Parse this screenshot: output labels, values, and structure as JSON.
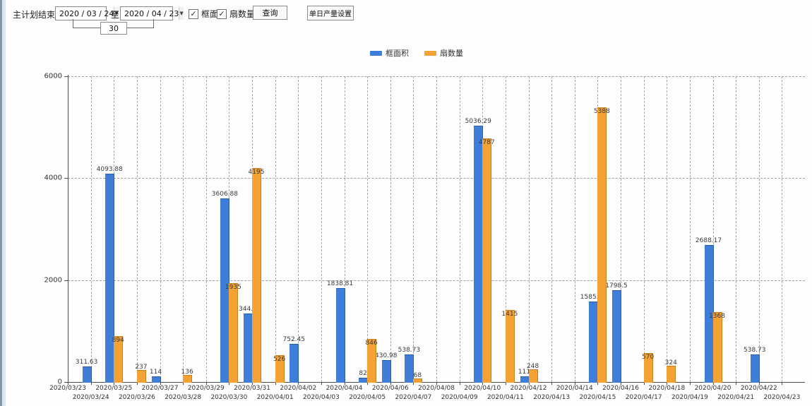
{
  "toolbar": {
    "label": "主计划结束时间:",
    "date_from": "2020 / 03 / 24",
    "to_label": "至:",
    "date_to": "2020 / 04 / 23",
    "days_value": "30",
    "checkbox_frame_area_label": "框面积",
    "checkbox_fan_count_label": "扇数量",
    "checkbox_checked_glyph": "✓",
    "query_button": "查询",
    "daily_output_button": "单日产量设置",
    "dropdown_glyph": "▼"
  },
  "legend": [
    {
      "label": "框面积",
      "color": "#3e7ed8"
    },
    {
      "label": "扇数量",
      "color": "#f3a233"
    }
  ],
  "chart_data": {
    "type": "bar",
    "title": "",
    "xlabel": "",
    "ylabel": "",
    "ylim": [
      0,
      6000
    ],
    "yticks": [
      0,
      2000,
      4000,
      6000
    ],
    "grid": true,
    "legend_position": "top",
    "categories": [
      "2020/03/23",
      "2020/03/24",
      "2020/03/25",
      "2020/03/26",
      "2020/03/27",
      "2020/03/28",
      "2020/03/29",
      "2020/03/30",
      "2020/03/31",
      "2020/04/01",
      "2020/04/02",
      "2020/04/03",
      "2020/04/04",
      "2020/04/05",
      "2020/04/06",
      "2020/04/07",
      "2020/04/08",
      "2020/04/09",
      "2020/04/10",
      "2020/04/11",
      "2020/04/12",
      "2020/04/13",
      "2020/04/14",
      "2020/04/15",
      "2020/04/16",
      "2020/04/17",
      "2020/04/18",
      "2020/04/19",
      "2020/04/20",
      "2020/04/21",
      "2020/04/22",
      "2020/04/23"
    ],
    "series": [
      {
        "name": "框面积",
        "color": "#3e7ed8",
        "values": [
          null,
          311.63,
          4093.88,
          null,
          114,
          null,
          null,
          3606.88,
          1344.95,
          null,
          752.45,
          null,
          1838.81,
          82,
          430.98,
          538.73,
          null,
          null,
          5036.29,
          null,
          111,
          null,
          null,
          1585.96,
          1798.5,
          null,
          null,
          null,
          2688.17,
          null,
          538.73,
          null
        ]
      },
      {
        "name": "扇数量",
        "color": "#f3a233",
        "values": [
          null,
          null,
          894,
          237,
          null,
          136,
          null,
          1935,
          4195,
          526,
          null,
          null,
          null,
          846,
          null,
          68,
          null,
          null,
          4787,
          1415,
          248,
          null,
          null,
          5388,
          null,
          570,
          324,
          null,
          1368,
          null,
          null,
          null
        ]
      }
    ]
  }
}
